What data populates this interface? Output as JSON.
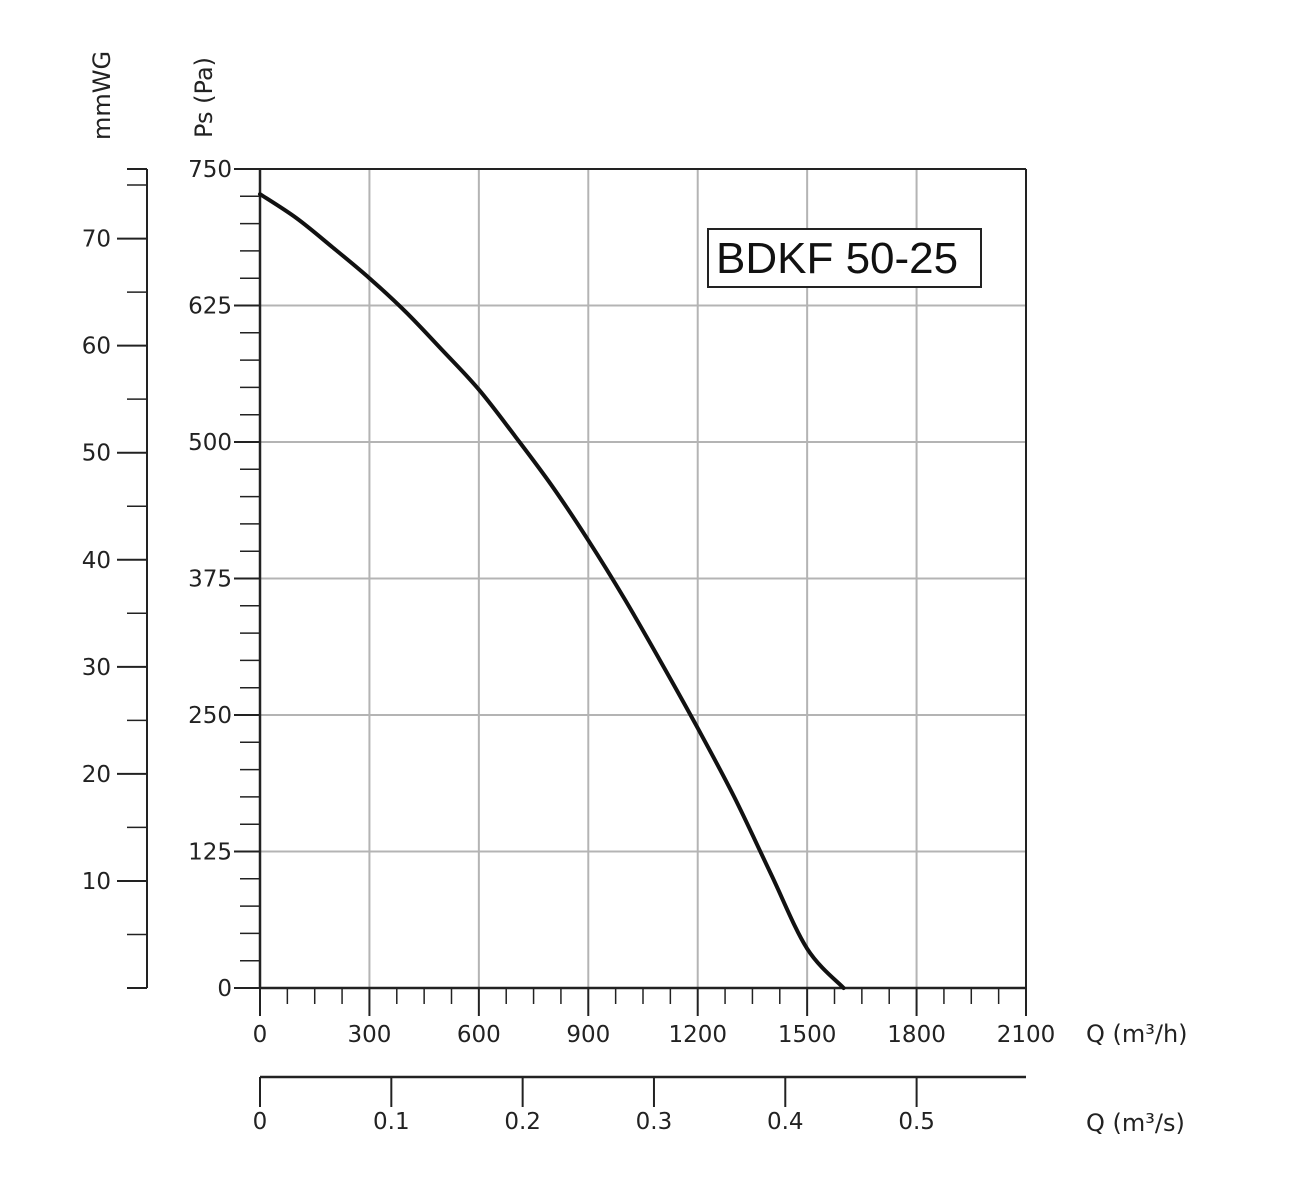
{
  "chart_data": {
    "type": "line",
    "title": "BDKF 50-25",
    "xlabel": "Q (m³/h)",
    "ylabel": "Ps (Pa)",
    "ylabel_secondary": "mmWG",
    "x2label": "Q (m³/s)",
    "xlim": [
      0,
      2100
    ],
    "ylim": [
      0,
      750
    ],
    "y2lim": [
      0,
      76.5
    ],
    "x2lim": [
      0,
      0.5833
    ],
    "grid": true,
    "x_ticks": [
      "0",
      "300",
      "600",
      "900",
      "1200",
      "1500",
      "1800",
      "2100"
    ],
    "y_ticks": [
      "0",
      "125",
      "250",
      "375",
      "500",
      "625",
      "750"
    ],
    "y2_ticks": [
      "10",
      "20",
      "30",
      "40",
      "50",
      "60",
      "70"
    ],
    "x2_ticks": [
      "0",
      "0.1",
      "0.2",
      "0.3",
      "0.4",
      "0.5"
    ],
    "series": [
      {
        "x": [
          0,
          100,
          200,
          300,
          400,
          500,
          600,
          700,
          800,
          900,
          1000,
          1100,
          1200,
          1300,
          1400,
          1500,
          1600
        ],
        "values": [
          727,
          705,
          678,
          650,
          619,
          584,
          548,
          505,
          460,
          410,
          356,
          298,
          238,
          175,
          105,
          36,
          0
        ]
      }
    ]
  }
}
